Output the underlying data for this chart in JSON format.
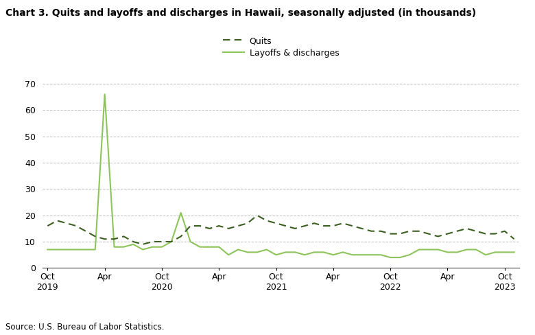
{
  "title": "Chart 3. Quits and layoffs and discharges in Hawaii, seasonally adjusted (in thousands)",
  "source": "Source: U.S. Bureau of Labor Statistics.",
  "legend_labels": [
    "Quits",
    "Layoffs & discharges"
  ],
  "quits_color": "#3a5e1f",
  "layoffs_color": "#8dc45a",
  "background_color": "#ffffff",
  "grid_color": "#bbbbbb",
  "ylim": [
    0,
    70
  ],
  "yticks": [
    0,
    10,
    20,
    30,
    40,
    50,
    60,
    70
  ],
  "xtick_labels": [
    "Oct\n2019",
    "Apr",
    "Oct\n2020",
    "Apr",
    "Oct\n2021",
    "Apr",
    "Oct\n2022",
    "Apr",
    "Oct\n2023"
  ],
  "xtick_positions": [
    0,
    6,
    12,
    18,
    24,
    30,
    36,
    42,
    48
  ],
  "quits": [
    16,
    18,
    17,
    16,
    14,
    12,
    11,
    11,
    12,
    10,
    9,
    10,
    10,
    10,
    12,
    16,
    16,
    15,
    16,
    15,
    16,
    17,
    20,
    18,
    17,
    16,
    15,
    16,
    17,
    16,
    16,
    17,
    16,
    15,
    14,
    14,
    13,
    13,
    14,
    14,
    13,
    12,
    13,
    14,
    15,
    14,
    13,
    13,
    14,
    11
  ],
  "layoffs": [
    7,
    7,
    7,
    7,
    7,
    7,
    66,
    8,
    8,
    9,
    7,
    8,
    8,
    10,
    21,
    10,
    8,
    8,
    8,
    5,
    7,
    6,
    6,
    7,
    5,
    6,
    6,
    5,
    6,
    6,
    5,
    6,
    5,
    5,
    5,
    5,
    4,
    4,
    5,
    7,
    7,
    7,
    6,
    6,
    7,
    7,
    5,
    6,
    6,
    6
  ]
}
